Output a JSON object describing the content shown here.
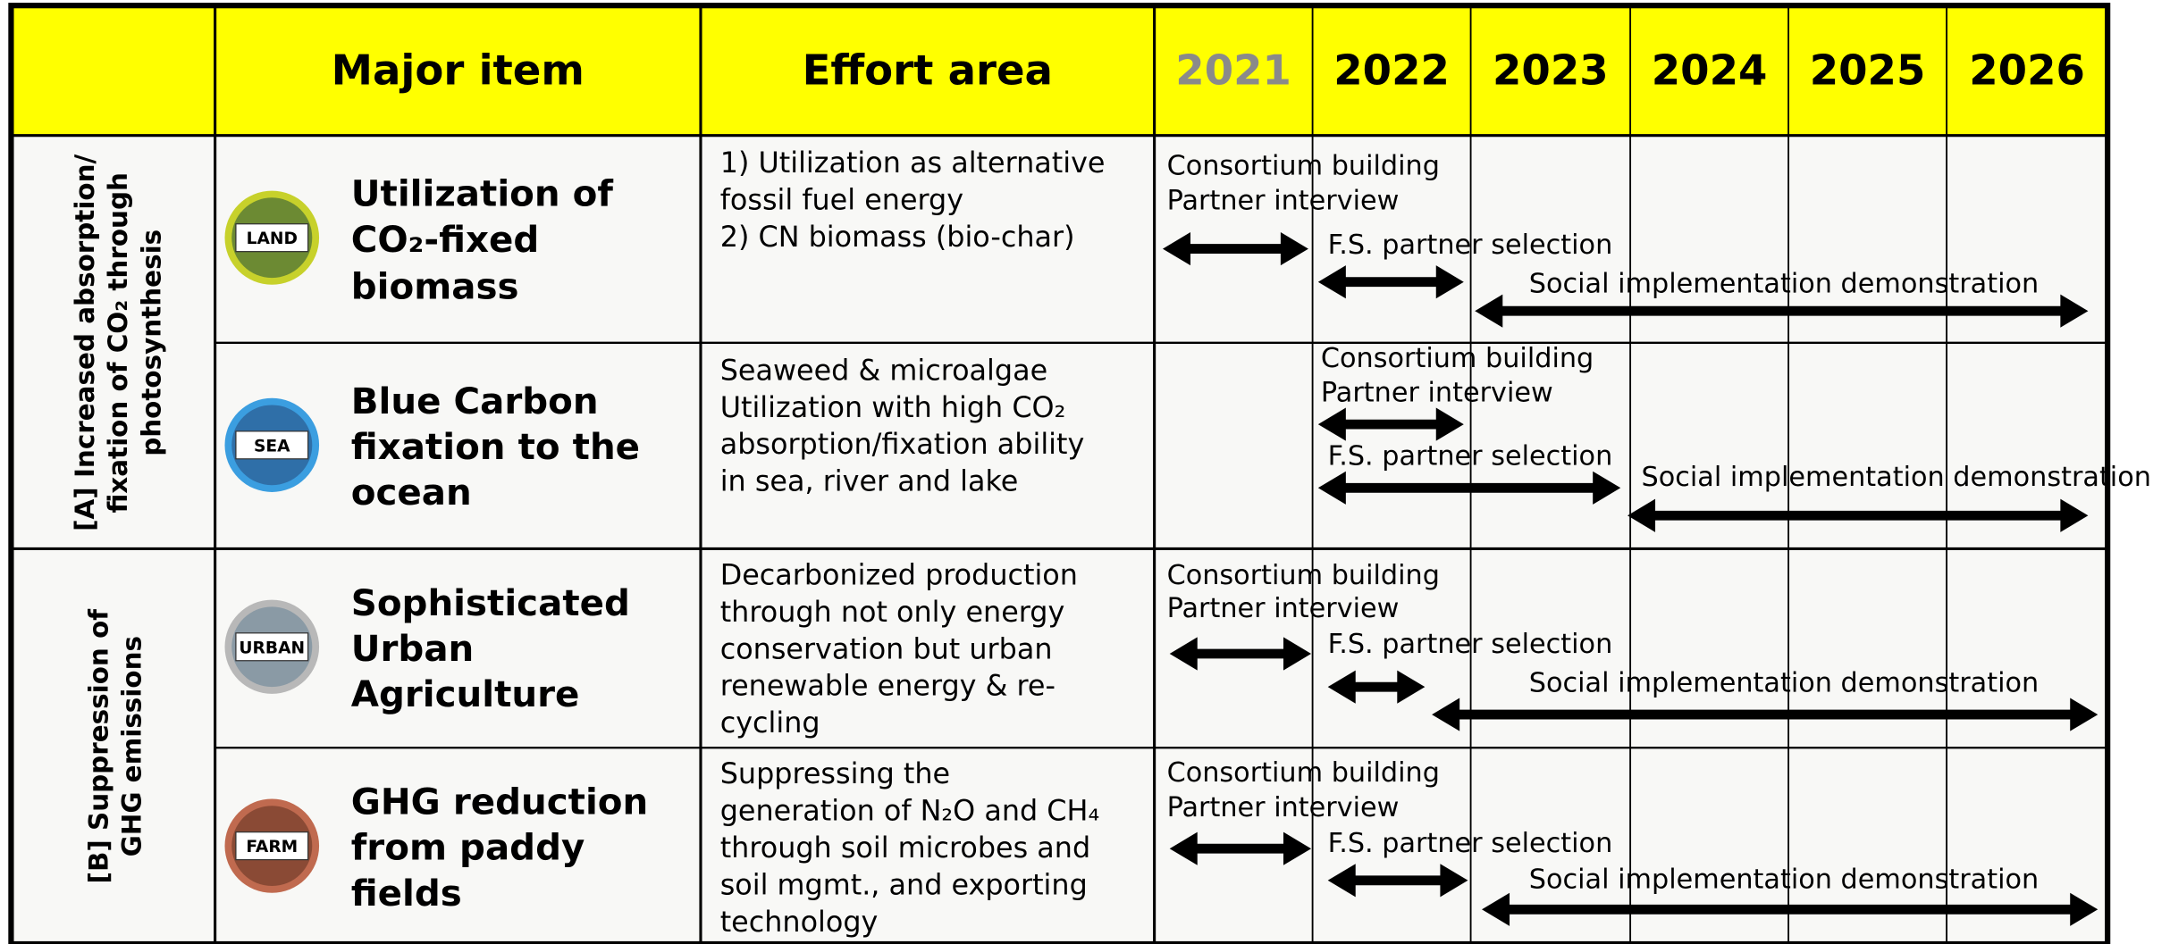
{
  "header": {
    "columns": [
      "Major item",
      "Effort area",
      "2021",
      "2022",
      "2023",
      "2024",
      "2025",
      "2026"
    ]
  },
  "groups": [
    {
      "label": [
        "[A] Increased absorption/",
        "fixation of CO₂ through",
        "photosynthesis"
      ]
    },
    {
      "label": [
        "[B] Suppression of",
        "GHG emissions"
      ]
    }
  ],
  "rows": [
    {
      "icon": "LAND",
      "item": [
        "Utilization of",
        "CO₂-fixed",
        "biomass"
      ],
      "effort": [
        "1) Utilization as alternative",
        "fossil fuel energy",
        "2) CN biomass (bio-char)"
      ],
      "timeline": [
        "Consortium building",
        "Partner interview",
        "F.S. partner selection",
        "Social implementation demonstration"
      ]
    },
    {
      "icon": "SEA",
      "item": [
        "Blue Carbon",
        "fixation to the",
        "ocean"
      ],
      "effort": [
        "Seaweed & microalgae",
        "Utilization with high CO₂",
        "absorption/fixation ability",
        "in sea, river and lake"
      ],
      "timeline": [
        "Consortium building",
        "Partner interview",
        "F.S. partner selection",
        "Social implementation demonstration"
      ]
    },
    {
      "icon": "URBAN",
      "item": [
        "Sophisticated",
        "Urban",
        "Agriculture"
      ],
      "effort": [
        "Decarbonized production",
        "through not only energy",
        "conservation but urban",
        "renewable energy & re-",
        "cycling"
      ],
      "timeline": [
        "Consortium building",
        "Partner interview",
        "F.S. partner selection",
        "Social implementation demonstration"
      ]
    },
    {
      "icon": "FARM",
      "item": [
        "GHG reduction",
        "from paddy",
        "fields"
      ],
      "effort": [
        "Suppressing the",
        "generation of N₂O and CH₄",
        "through soil microbes and",
        "soil mgmt., and exporting",
        "technology"
      ],
      "timeline": [
        "Consortium building",
        "Partner interview",
        "F.S. partner selection",
        "Social implementation demonstration"
      ]
    }
  ]
}
